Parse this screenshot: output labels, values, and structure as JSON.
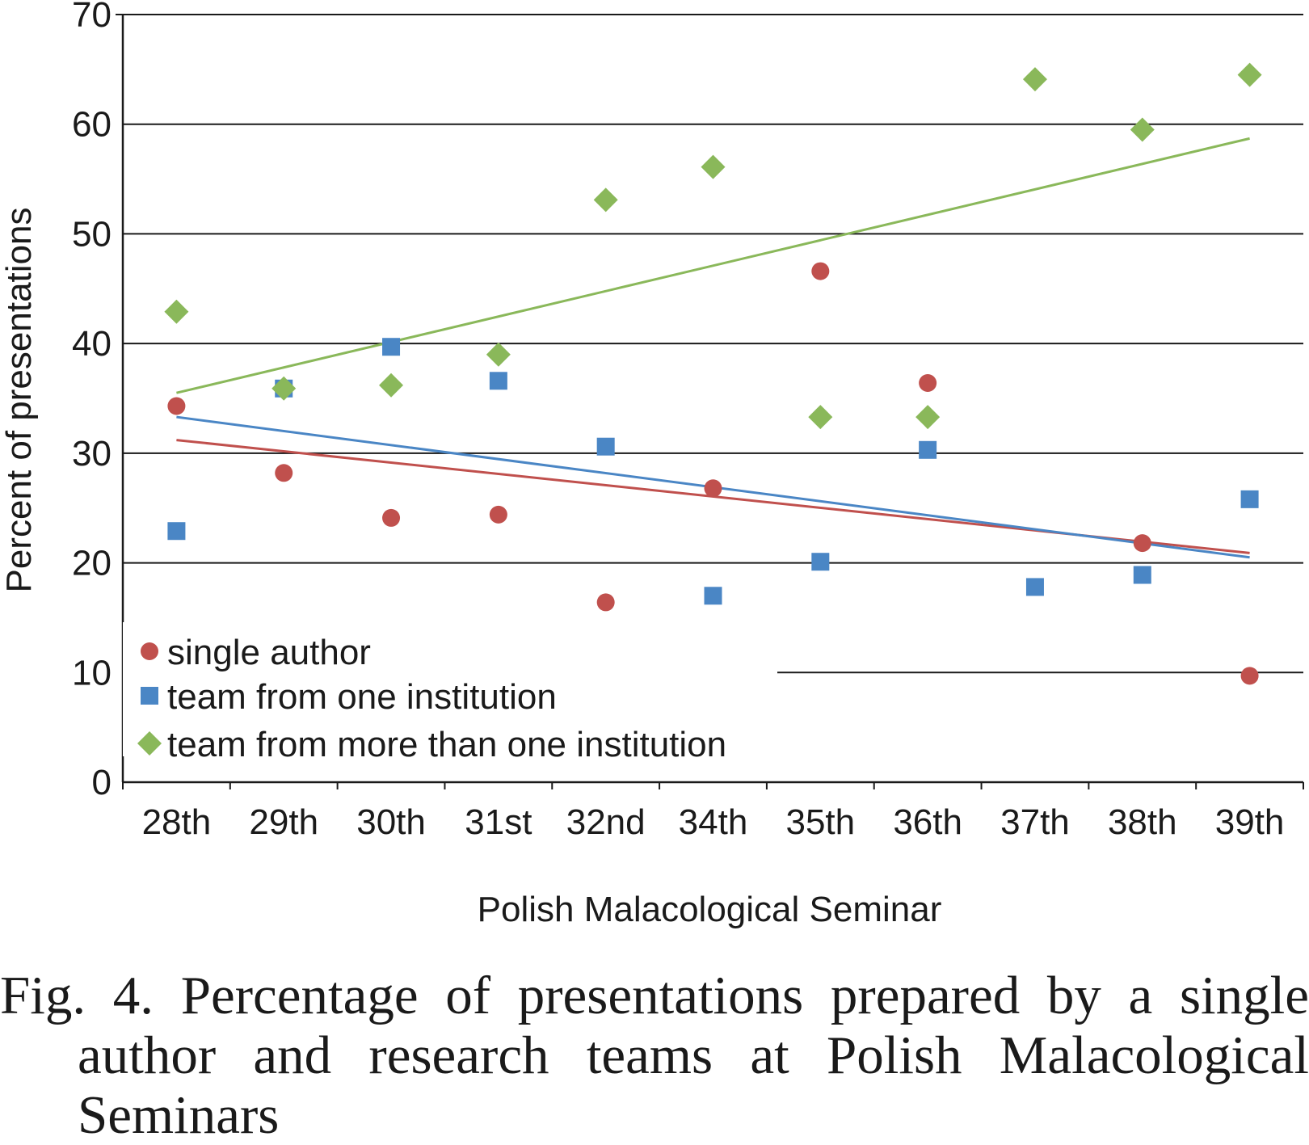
{
  "chart_data": {
    "type": "scatter",
    "categories": [
      "28th",
      "29th",
      "30th",
      "31st",
      "32nd",
      "34th",
      "35th",
      "36th",
      "37th",
      "38th",
      "39th"
    ],
    "xlabel": "Polish Malacological Seminar",
    "ylabel": "Percent of presentations",
    "ylim": [
      0,
      70
    ],
    "yticks": [
      "0",
      "10",
      "20",
      "30",
      "40",
      "50",
      "60",
      "70"
    ],
    "grid": true,
    "legend_position": "bottom-left",
    "series": [
      {
        "name": "single author",
        "marker": "circle",
        "color": "#c0504d",
        "values": [
          34.3,
          28.2,
          24.1,
          24.4,
          16.4,
          26.8,
          46.6,
          36.4,
          null,
          21.8,
          9.7
        ],
        "trendline": [
          31.2,
          20.9
        ]
      },
      {
        "name": "team from one institution",
        "marker": "square",
        "color": "#4a86c5",
        "values": [
          22.9,
          35.9,
          39.7,
          36.6,
          30.6,
          17.0,
          20.1,
          30.3,
          17.8,
          18.9,
          25.8
        ],
        "trendline": [
          33.3,
          20.5
        ]
      },
      {
        "name": "team from more than one institution",
        "marker": "diamond",
        "color": "#8ab85a",
        "values": [
          42.9,
          35.9,
          36.2,
          39.0,
          53.1,
          56.1,
          33.3,
          33.3,
          64.1,
          59.5,
          64.5
        ],
        "trendline": [
          35.5,
          58.7
        ]
      }
    ]
  },
  "caption": {
    "line1": "Fig. 4. Percentage of presentations prepared by a single",
    "line2": "author and research teams at Polish Malacological",
    "line3": "Seminars"
  }
}
